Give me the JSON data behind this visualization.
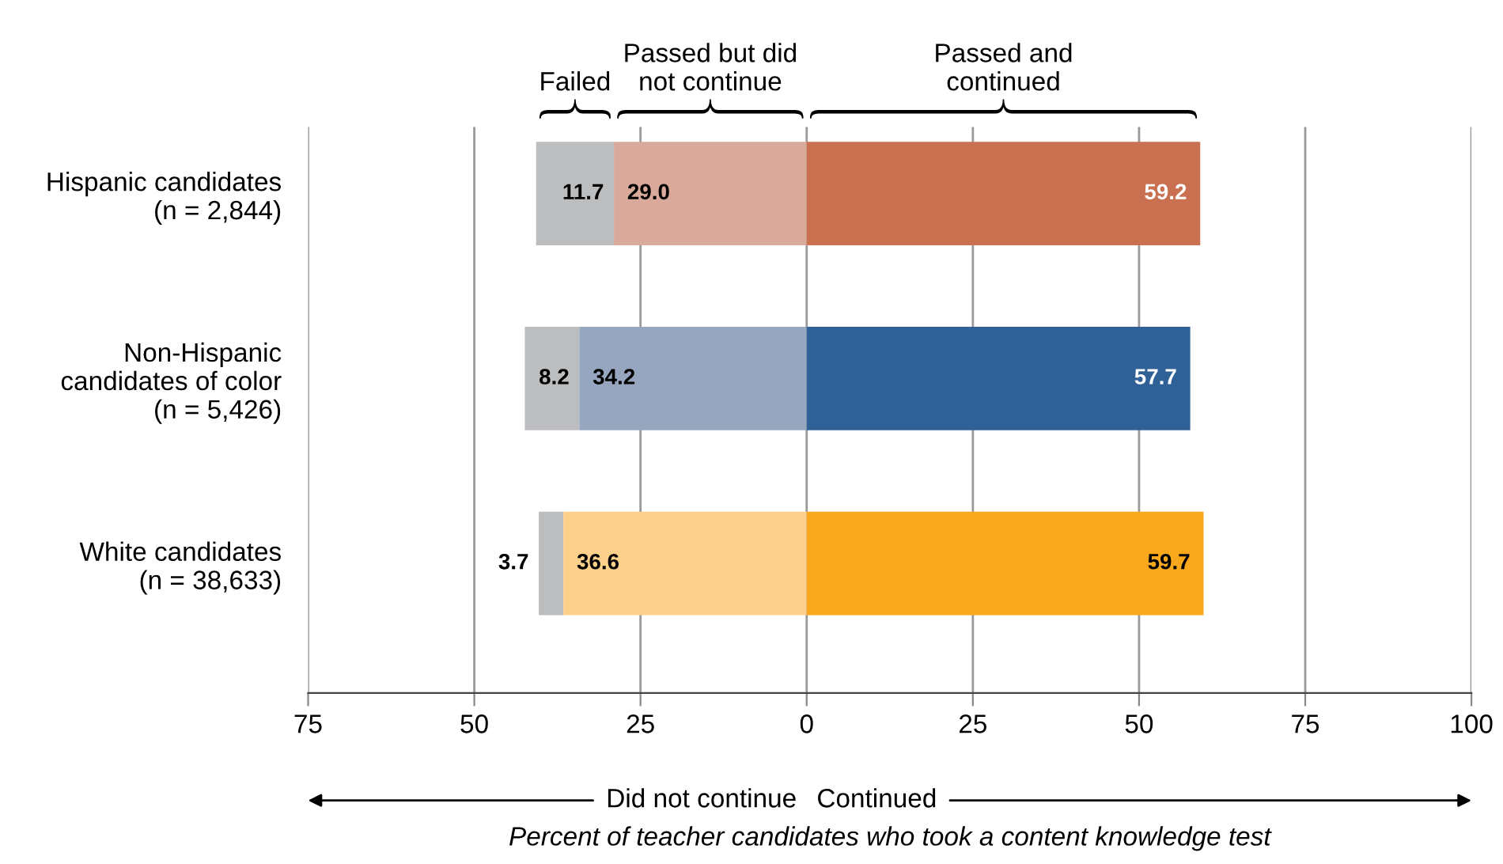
{
  "chart_data": {
    "type": "bar",
    "orientation": "horizontal",
    "categories": [
      "Hispanic candidates\n(n = 2,844)",
      "Non-Hispanic\ncandidates of color\n(n = 5,426)",
      "White candidates\n(n = 38,633)"
    ],
    "series": [
      {
        "name": "Failed",
        "colors": [
          "#bcbdbf",
          "#bcbdbf",
          "#bcbdbf"
        ],
        "values": [
          -11.7,
          -8.2,
          -3.7
        ],
        "base": [
          -29.0,
          -34.2,
          -36.6
        ],
        "value_labels": [
          "11.7",
          "8.2",
          "3.7"
        ]
      },
      {
        "name": "Passed but did not continue",
        "colors": [
          "#d9aa9c",
          "#97a6bf",
          "#fdd08c"
        ],
        "values": [
          -29.0,
          -34.2,
          -36.6
        ],
        "base": [
          0,
          0,
          0
        ],
        "value_labels": [
          "29.0",
          "34.2",
          "36.6"
        ]
      },
      {
        "name": "Passed and continued",
        "colors": [
          "#c8704f",
          "#2f6197",
          "#f9a81d"
        ],
        "values": [
          59.2,
          57.7,
          59.7
        ],
        "base": [
          0,
          0,
          0
        ],
        "value_labels": [
          "59.2",
          "57.7",
          "59.7"
        ]
      }
    ],
    "xlim": [
      -75,
      100
    ],
    "xticks": [
      {
        "value": -75,
        "label": "75"
      },
      {
        "value": -50,
        "label": "50"
      },
      {
        "value": -25,
        "label": "25"
      },
      0,
      25,
      50,
      75,
      100
    ],
    "grid": "x",
    "xlabel": "Percent of teacher candidates who took a content knowledge test",
    "annotations": [
      "Did not continue",
      "Continued"
    ]
  }
}
